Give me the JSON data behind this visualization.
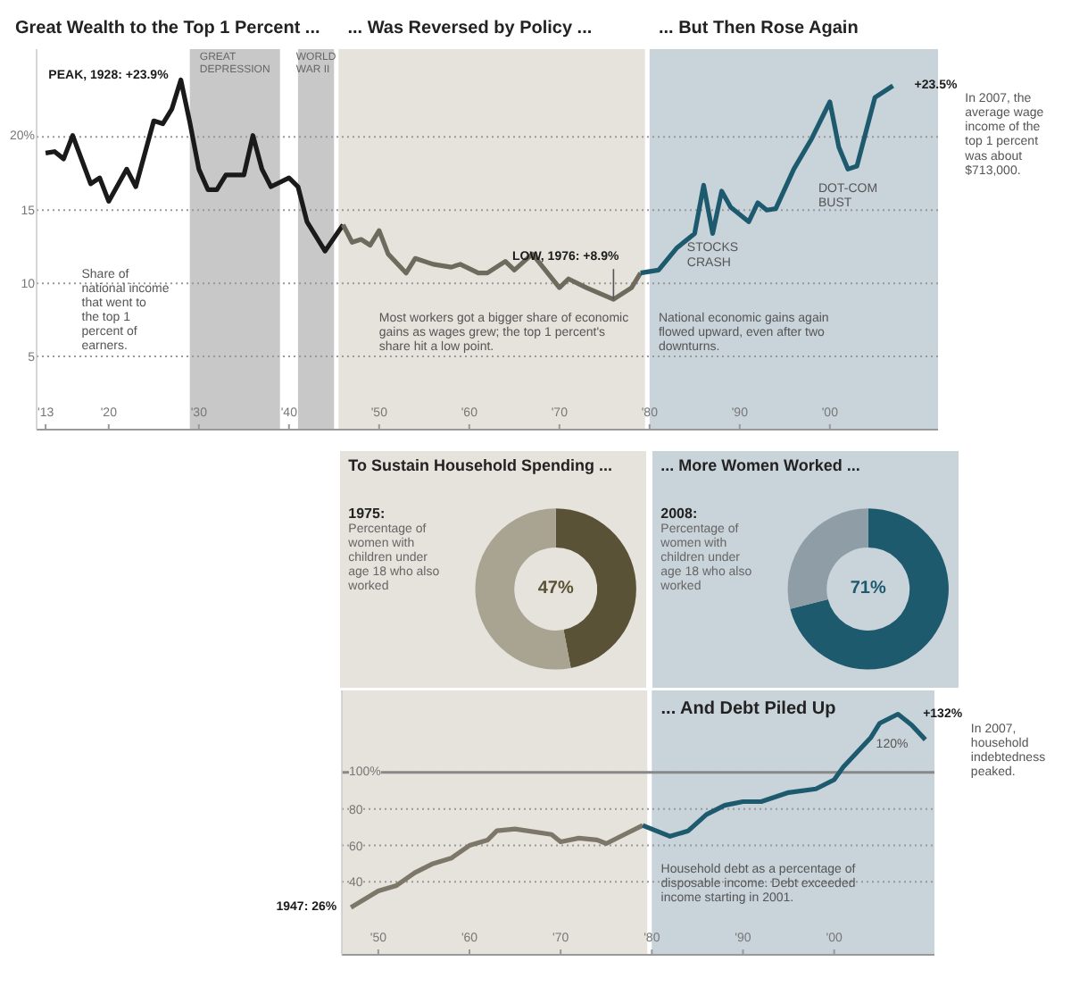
{
  "chart_data": [
    {
      "type": "line",
      "title": "Great Wealth to the Top 1 Percent ...",
      "xlim": [
        1912,
        2012
      ],
      "ylim": [
        0,
        26
      ],
      "xticks": [
        {
          "value": 1913,
          "label": "'13"
        },
        {
          "value": 1920,
          "label": "'20"
        },
        {
          "value": 1930,
          "label": "'30"
        },
        {
          "value": 1940,
          "label": "'40"
        },
        {
          "value": 1950,
          "label": "'50"
        },
        {
          "value": 1960,
          "label": "'60"
        },
        {
          "value": 1970,
          "label": "'70"
        },
        {
          "value": 1980,
          "label": "'80"
        },
        {
          "value": 1990,
          "label": "'90"
        },
        {
          "value": 2000,
          "label": "'00"
        }
      ],
      "yticks": [
        5,
        10,
        15,
        {
          "value": 20,
          "label": "20%"
        }
      ],
      "grid": "y",
      "series": [
        {
          "color": "#1a1a1a",
          "x": [
            1913,
            1914,
            1915,
            1916,
            1918,
            1919,
            1920,
            1922,
            1923,
            1925,
            1926,
            1927,
            1928,
            1929,
            1930,
            1931,
            1932,
            1933,
            1935,
            1936,
            1937,
            1938,
            1940,
            1941,
            1942,
            1944,
            1946
          ],
          "values": [
            18.9,
            19.0,
            18.5,
            20.1,
            16.8,
            17.2,
            15.6,
            17.8,
            16.6,
            21.1,
            20.9,
            21.9,
            23.9,
            21.0,
            17.8,
            16.4,
            16.4,
            17.4,
            17.4,
            20.1,
            17.8,
            16.6,
            17.2,
            16.6,
            14.2,
            12.2,
            14.0
          ]
        },
        {
          "color": "#6e6b5e",
          "x": [
            1946,
            1947,
            1948,
            1949,
            1950,
            1951,
            1953,
            1954,
            1956,
            1958,
            1959,
            1961,
            1962,
            1964,
            1965,
            1967,
            1970,
            1971,
            1973,
            1976,
            1978,
            1979
          ],
          "values": [
            14.0,
            12.8,
            13.0,
            12.6,
            13.6,
            12.0,
            10.7,
            11.7,
            11.3,
            11.1,
            11.3,
            10.7,
            10.7,
            11.5,
            10.9,
            12.0,
            9.7,
            10.3,
            9.7,
            8.9,
            9.7,
            10.7
          ]
        },
        {
          "color": "#1d5a6e",
          "x": [
            1979,
            1981,
            1983,
            1985,
            1986,
            1987,
            1988,
            1989,
            1991,
            1992,
            1993,
            1994,
            1996,
            1998,
            2000,
            2001,
            2002,
            2003,
            2005,
            2007
          ],
          "values": [
            10.7,
            10.9,
            12.4,
            13.4,
            16.7,
            13.4,
            16.3,
            15.2,
            14.2,
            15.5,
            15.0,
            15.1,
            17.8,
            19.9,
            22.4,
            19.3,
            17.8,
            18.0,
            22.7,
            23.5
          ]
        }
      ],
      "bands": [
        {
          "axis": "x",
          "from": 1945.5,
          "to": 1979.5,
          "label": "... Was Reversed by Policy ...",
          "color": "#e6e3dc"
        },
        {
          "axis": "x",
          "from": 1980,
          "to": 2012,
          "label": "... But Then Rose Again",
          "color": "#c9d3da"
        },
        {
          "axis": "x",
          "from": 1929,
          "to": 1939,
          "label": "GREAT DEPRESSION",
          "color": "#c8c8c8"
        },
        {
          "axis": "x",
          "from": 1941,
          "to": 1945,
          "label": "WORLD WAR II",
          "color": "#c8c8c8"
        }
      ],
      "annotations": [
        {
          "text": "PEAK, 1928: +23.9%",
          "x": 1928,
          "y": 23.9
        },
        {
          "text": "LOW, 1976: +8.9%",
          "x": 1976,
          "y": 8.9
        },
        {
          "text": "+23.5%",
          "x": 2007,
          "y": 23.5
        },
        "In 2007, the average wage income of the top 1 percent was about $713,000.",
        "Share of national income that went to the top 1 percent of earners.",
        "Most workers got a bigger share of economic gains as wages grew; the top 1 percent's share hit a low point.",
        "National economic gains again flowed upward, even after two downturns.",
        {
          "text": "STOCKS CRASH",
          "x": 1987,
          "y": 13.4
        },
        {
          "text": "DOT-COM BUST",
          "x": 2002,
          "y": 17.8
        }
      ]
    },
    {
      "type": "donut",
      "title": "To Sustain Household Spending ...",
      "subtitle": "1975:",
      "annotations": [
        "47%",
        "Percentage of women with children under age 18 who also worked"
      ],
      "categories": [
        null,
        null
      ],
      "values": [
        47,
        53
      ],
      "colors": [
        "#5a5236",
        "#a9a491"
      ]
    },
    {
      "type": "donut",
      "title": "... More Women Worked ...",
      "subtitle": "2008:",
      "annotations": [
        "71%",
        "Percentage of women with children under age 18 who also worked"
      ],
      "categories": [
        null,
        null
      ],
      "values": [
        71,
        29
      ],
      "colors": [
        "#1d5a6e",
        "#8f9ea6"
      ]
    },
    {
      "type": "line",
      "title": "... And Debt Piled Up",
      "xlim": [
        1946,
        2011
      ],
      "ylim": [
        0,
        145
      ],
      "xticks": [
        {
          "value": 1950,
          "label": "'50"
        },
        {
          "value": 1960,
          "label": "'60"
        },
        {
          "value": 1970,
          "label": "'70"
        },
        {
          "value": 1980,
          "label": "'80"
        },
        {
          "value": 1990,
          "label": "'90"
        },
        {
          "value": 2000,
          "label": "'00"
        }
      ],
      "yticks": [
        40,
        60,
        80,
        {
          "value": 100,
          "label": "100%"
        }
      ],
      "grid": "y",
      "series": [
        {
          "color": "#7d776a",
          "x": [
            1947,
            1950,
            1952,
            1954,
            1956,
            1958,
            1960,
            1962,
            1963,
            1965,
            1969,
            1970,
            1972,
            1974,
            1975,
            1977,
            1979
          ],
          "values": [
            26,
            35,
            38,
            45,
            50,
            53,
            60,
            63,
            68,
            69,
            66,
            62,
            64,
            63,
            61,
            66,
            71
          ]
        },
        {
          "color": "#1d5a6e",
          "x": [
            1979,
            1982,
            1984,
            1986,
            1988,
            1990,
            1992,
            1995,
            1998,
            2000,
            2001,
            2004,
            2005,
            2007,
            2008.5,
            2010
          ],
          "values": [
            71,
            65,
            68,
            77,
            82,
            84,
            84,
            89,
            91,
            96,
            103,
            119,
            127,
            132,
            126,
            118
          ]
        }
      ],
      "bands": [
        {
          "axis": "x",
          "from": 1946,
          "to": 1979.5,
          "color": "#e6e3dc"
        },
        {
          "axis": "x",
          "from": 1980,
          "to": 2011,
          "color": "#c9d3da"
        }
      ],
      "ref_lines": [
        {
          "axis": "y",
          "value": 100,
          "color": "#888888"
        }
      ],
      "annotations": [
        {
          "text": "1947: 26%",
          "x": 1947,
          "y": 26
        },
        {
          "text": "+132%",
          "x": 2007,
          "y": 132
        },
        "In 2007, household indebtedness peaked.",
        "Household debt as a percentage of disposable income. Debt exceeded income starting in 2001.",
        "120%"
      ]
    }
  ]
}
